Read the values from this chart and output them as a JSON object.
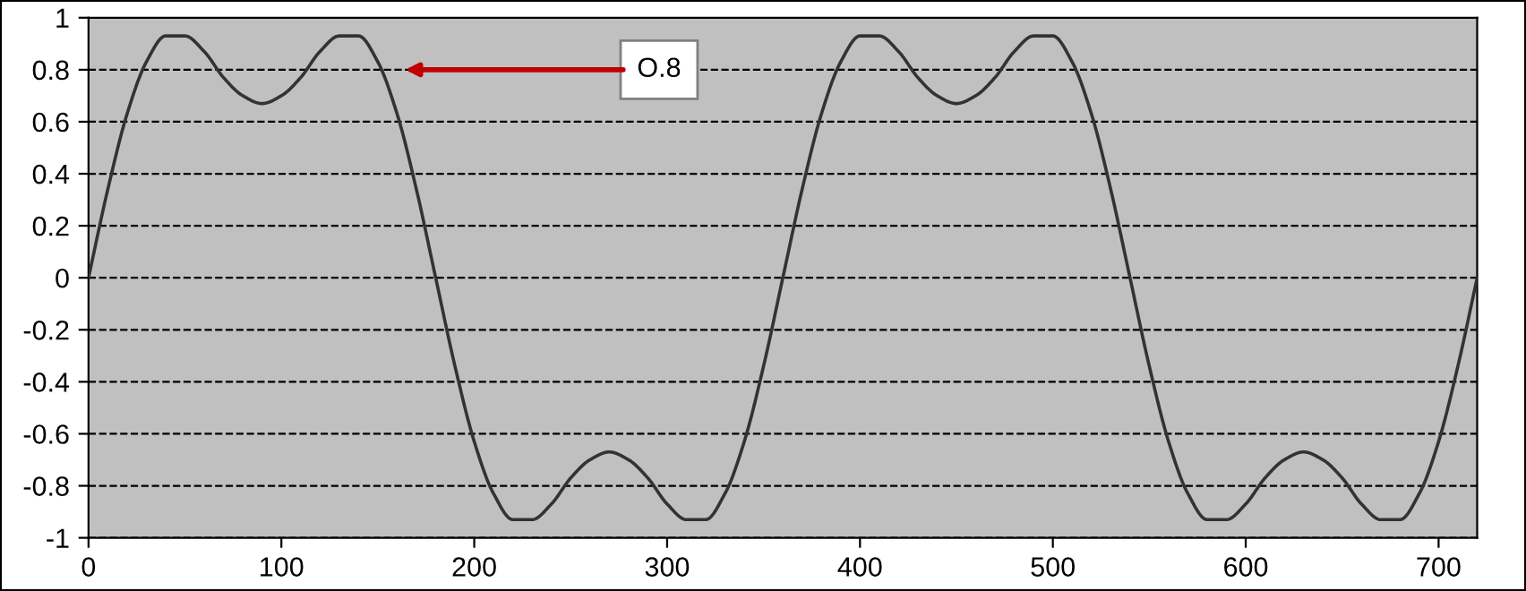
{
  "chart_data": {
    "type": "line",
    "x": [
      0,
      10,
      20,
      30,
      40,
      50,
      60,
      70,
      80,
      90,
      100,
      110,
      120,
      130,
      140,
      150,
      160,
      170,
      180,
      190,
      200,
      210,
      220,
      230,
      240,
      250,
      260,
      270,
      280,
      290,
      300,
      310,
      320,
      330,
      340,
      350,
      360,
      370,
      380,
      390,
      400,
      410,
      420,
      430,
      440,
      450,
      460,
      470,
      480,
      490,
      500,
      510,
      520,
      530,
      540,
      550,
      560,
      570,
      580,
      590,
      600,
      610,
      620,
      630,
      640,
      650,
      660,
      670,
      680,
      690,
      700,
      710,
      720
    ],
    "series": [
      {
        "color": "#333333",
        "values": [
          0,
          0.34,
          0.63,
          0.83,
          0.93,
          0.93,
          0.87,
          0.77,
          0.7,
          0.67,
          0.7,
          0.77,
          0.87,
          0.93,
          0.93,
          0.83,
          0.63,
          0.34,
          0,
          -0.34,
          -0.63,
          -0.83,
          -0.93,
          -0.93,
          -0.87,
          -0.77,
          -0.7,
          -0.67,
          -0.7,
          -0.77,
          -0.87,
          -0.93,
          -0.93,
          -0.83,
          -0.63,
          -0.34,
          0,
          0.34,
          0.63,
          0.83,
          0.93,
          0.93,
          0.87,
          0.77,
          0.7,
          0.67,
          0.7,
          0.77,
          0.87,
          0.93,
          0.93,
          0.83,
          0.63,
          0.34,
          0,
          -0.34,
          -0.63,
          -0.83,
          -0.93,
          -0.93,
          -0.87,
          -0.77,
          -0.7,
          -0.67,
          -0.7,
          -0.77,
          -0.87,
          -0.93,
          -0.93,
          -0.83,
          -0.63,
          -0.34,
          0
        ]
      }
    ],
    "xlim": [
      0,
      720
    ],
    "xticks": [
      0,
      100,
      200,
      300,
      400,
      500,
      600,
      700
    ],
    "ylim": [
      -1,
      1
    ],
    "yticks": [
      -1,
      -0.8,
      -0.6,
      -0.4,
      -0.2,
      0,
      0.2,
      0.4,
      0.6,
      0.8,
      1
    ],
    "grid": "y",
    "line_style": "solid",
    "annotations": [
      "O.8"
    ]
  }
}
